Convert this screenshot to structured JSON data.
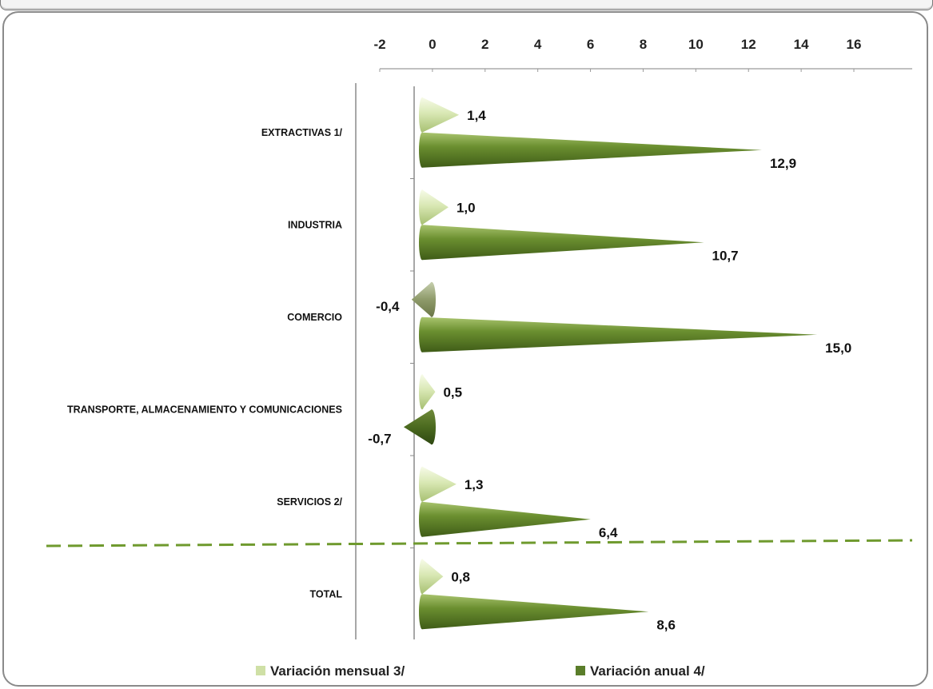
{
  "chart_data": {
    "type": "bar",
    "orientation": "horizontal",
    "shape": "cone",
    "categories": [
      "EXTRACTIVAS 1/",
      "INDUSTRIA",
      "COMERCIO",
      "TRANSPORTE, ALMACENAMIENTO Y COMUNICACIONES",
      "SERVICIOS 2/",
      "TOTAL"
    ],
    "series": [
      {
        "name": "Variación mensual 3/",
        "values": [
          1.4,
          1.0,
          -0.4,
          0.5,
          1.3,
          0.8
        ],
        "labels": [
          "1,4",
          "1,0",
          "-0,4",
          "0,5",
          "1,3",
          "0,8"
        ],
        "color": "#cfe0a6"
      },
      {
        "name": "Variación anual 4/",
        "values": [
          12.9,
          10.7,
          15.0,
          -0.7,
          6.4,
          8.6
        ],
        "labels": [
          "12,9",
          "10,7",
          "15,0",
          "-0,7",
          "6,4",
          "8,6"
        ],
        "color": "#5a7d2a"
      }
    ],
    "xlim": [
      -2,
      16
    ],
    "xticks": [
      "-2",
      "0",
      "2",
      "4",
      "6",
      "8",
      "10",
      "12",
      "14",
      "16"
    ],
    "axis_position": "top",
    "separator": "dashed line between SERVICIOS 2/ and TOTAL",
    "legend_position": "bottom",
    "grid": false
  }
}
